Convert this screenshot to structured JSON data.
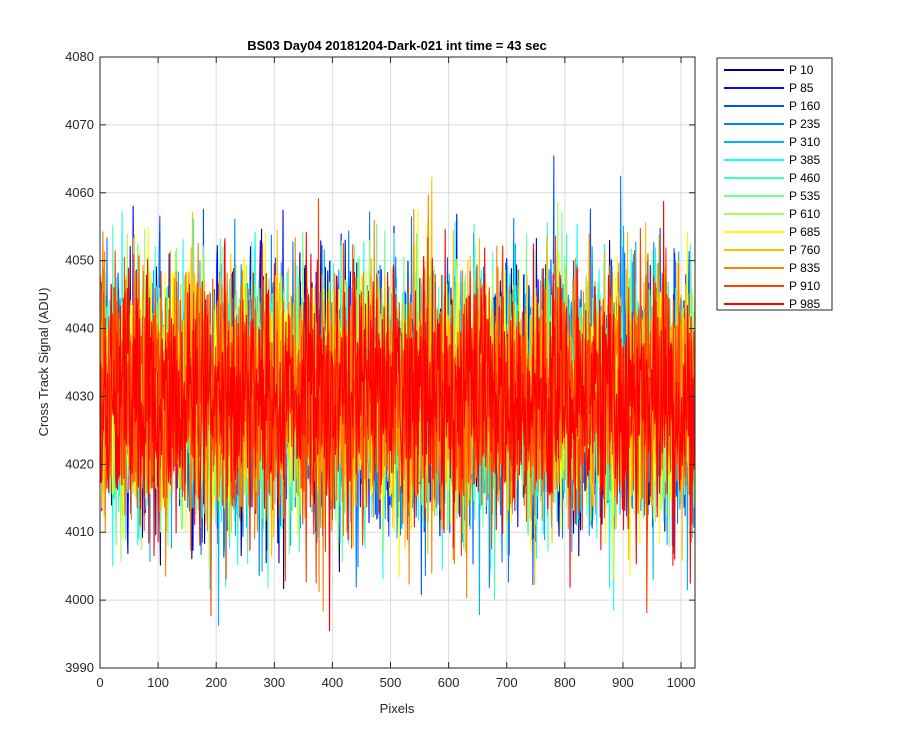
{
  "chart_data": {
    "type": "line",
    "title": "BS03 Day04 20181204-Dark-021 int time = 43 sec",
    "xlabel": "Pixels",
    "ylabel": "Cross Track Signal (ADU)",
    "xlim": [
      0,
      1024
    ],
    "ylim": [
      3990,
      4080
    ],
    "xticks": [
      "0",
      "100",
      "200",
      "300",
      "400",
      "500",
      "600",
      "700",
      "800",
      "900",
      "1000"
    ],
    "yticks": [
      "3990",
      "4000",
      "4010",
      "4020",
      "4030",
      "4040",
      "4050",
      "4060",
      "4070",
      "4080"
    ],
    "grid": true,
    "legend_position": "outside-top-right",
    "n_points": 1024,
    "signal_mean": 4030,
    "signal_std": 9,
    "series": [
      {
        "name": "P 10",
        "color": "#00008f"
      },
      {
        "name": "P 85",
        "color": "#0000ff"
      },
      {
        "name": "P 160",
        "color": "#004fff"
      },
      {
        "name": "P 235",
        "color": "#0080ff"
      },
      {
        "name": "P 310",
        "color": "#00b0ff"
      },
      {
        "name": "P 385",
        "color": "#10ffef"
      },
      {
        "name": "P 460",
        "color": "#40ffbf"
      },
      {
        "name": "P 535",
        "color": "#70ff8f"
      },
      {
        "name": "P 610",
        "color": "#a0ff60"
      },
      {
        "name": "P 685",
        "color": "#ffff00"
      },
      {
        "name": "P 760",
        "color": "#ffbf00"
      },
      {
        "name": "P 835",
        "color": "#ff8000"
      },
      {
        "name": "P 910",
        "color": "#ff4000"
      },
      {
        "name": "P 985",
        "color": "#ff0000"
      }
    ]
  }
}
